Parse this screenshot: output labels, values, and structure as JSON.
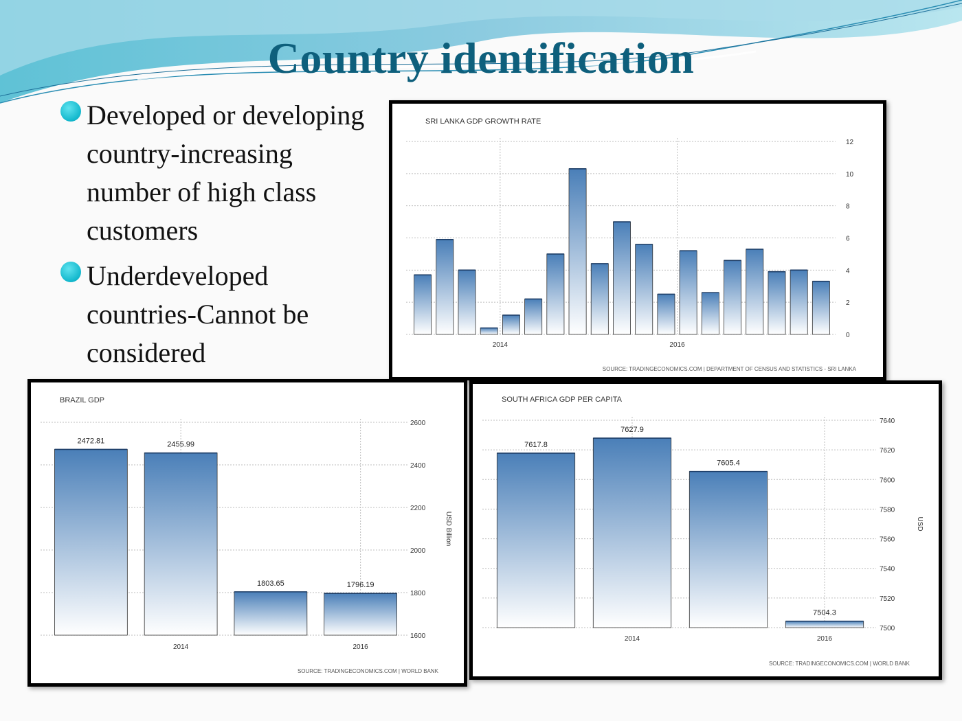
{
  "slide": {
    "title": "Country identification",
    "bullets": [
      "Developed or developing country-increasing number of high class customers",
      "Underdeveloped countries-Cannot be considered"
    ]
  },
  "colors": {
    "title": "#0e5f7c",
    "bullet": "#12b7cc",
    "bar_top": "#4a7fb8",
    "bar_bottom": "#ffffff"
  },
  "chart_data": [
    {
      "type": "bar",
      "title": "SRI LANKA GDP GROWTH RATE",
      "values": [
        3.7,
        5.9,
        4.0,
        0.4,
        1.2,
        2.2,
        5.0,
        10.3,
        4.4,
        7.0,
        5.6,
        2.5,
        5.2,
        2.6,
        4.6,
        5.3,
        3.9,
        4.0,
        3.3
      ],
      "xticks": [
        {
          "label": "2014",
          "index": 3.5
        },
        {
          "label": "2016",
          "index": 11.5
        }
      ],
      "yticks": [
        0,
        2,
        4,
        6,
        8,
        10,
        12
      ],
      "ylim": [
        0,
        12
      ],
      "ylabel": "",
      "source": "SOURCE: TRADINGECONOMICS.COM | DEPARTMENT OF CENSUS AND STATISTICS - SRI LANKA",
      "grid": true
    },
    {
      "type": "bar",
      "title": "BRAZIL GDP",
      "values": [
        2472.81,
        2455.99,
        1803.65,
        1796.19
      ],
      "labels": [
        "2472.81",
        "2455.99",
        "1803.65",
        "1796.19"
      ],
      "xticks": [
        {
          "label": "2014",
          "index": 1
        },
        {
          "label": "2016",
          "index": 3
        }
      ],
      "yticks": [
        1600,
        1800,
        2000,
        2200,
        2400,
        2600
      ],
      "ylim": [
        1600,
        2600
      ],
      "ylabel": "USD Billion",
      "source": "SOURCE: TRADINGECONOMICS.COM | WORLD BANK",
      "grid": true
    },
    {
      "type": "bar",
      "title": "SOUTH AFRICA GDP PER CAPITA",
      "values": [
        7617.8,
        7627.9,
        7605.4,
        7504.3
      ],
      "labels": [
        "7617.8",
        "7627.9",
        "7605.4",
        "7504.3"
      ],
      "xticks": [
        {
          "label": "2014",
          "index": 1
        },
        {
          "label": "2016",
          "index": 3
        }
      ],
      "yticks": [
        7500,
        7520,
        7540,
        7560,
        7580,
        7600,
        7620,
        7640
      ],
      "ylim": [
        7500,
        7640
      ],
      "ylabel": "USD",
      "source": "SOURCE: TRADINGECONOMICS.COM | WORLD BANK",
      "grid": true
    }
  ]
}
